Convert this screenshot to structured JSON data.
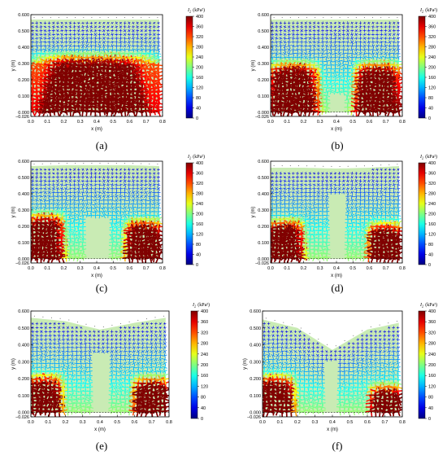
{
  "figure": {
    "panels": [
      {
        "label": "(a)",
        "surface": [
          [
            0,
            0.57
          ],
          [
            0.2,
            0.57
          ],
          [
            0.4,
            0.57
          ],
          [
            0.6,
            0.57
          ],
          [
            0.78,
            0.57
          ]
        ],
        "hot_zones": [
          [
            0.0,
            0.78,
            0.0,
            0.3
          ]
        ],
        "hole": null
      },
      {
        "label": "(b)",
        "surface": [
          [
            0,
            0.57
          ],
          [
            0.2,
            0.57
          ],
          [
            0.4,
            0.57
          ],
          [
            0.6,
            0.57
          ],
          [
            0.78,
            0.57
          ]
        ],
        "hot_zones": [
          [
            0.0,
            0.28,
            0.0,
            0.25
          ],
          [
            0.53,
            0.78,
            0.0,
            0.25
          ]
        ],
        "hole": [
          0.4,
          0.0,
          0.05,
          0.12
        ]
      },
      {
        "label": "(c)",
        "surface": [
          [
            0,
            0.57
          ],
          [
            0.2,
            0.575
          ],
          [
            0.4,
            0.575
          ],
          [
            0.6,
            0.575
          ],
          [
            0.78,
            0.57
          ]
        ],
        "hot_zones": [
          [
            0.0,
            0.18,
            0.0,
            0.22
          ],
          [
            0.6,
            0.78,
            0.0,
            0.18
          ]
        ],
        "hole": [
          0.4,
          0.0,
          0.08,
          0.25
        ]
      },
      {
        "label": "(d)",
        "surface": [
          [
            0,
            0.56
          ],
          [
            0.2,
            0.56
          ],
          [
            0.4,
            0.555
          ],
          [
            0.6,
            0.56
          ],
          [
            0.78,
            0.57
          ]
        ],
        "hot_zones": [
          [
            0.0,
            0.18,
            0.0,
            0.18
          ],
          [
            0.62,
            0.78,
            0.0,
            0.16
          ]
        ],
        "hole": [
          0.4,
          0.0,
          0.05,
          0.4
        ]
      },
      {
        "label": "(e)",
        "surface": [
          [
            0,
            0.56
          ],
          [
            0.2,
            0.54
          ],
          [
            0.4,
            0.49
          ],
          [
            0.6,
            0.53
          ],
          [
            0.78,
            0.56
          ]
        ],
        "hot_zones": [
          [
            0.0,
            0.16,
            0.0,
            0.16
          ],
          [
            0.62,
            0.78,
            0.0,
            0.15
          ]
        ],
        "hole": [
          0.4,
          0.0,
          0.05,
          0.35
        ]
      },
      {
        "label": "(f)",
        "surface": [
          [
            0,
            0.55
          ],
          [
            0.2,
            0.5
          ],
          [
            0.4,
            0.37
          ],
          [
            0.6,
            0.49
          ],
          [
            0.78,
            0.53
          ]
        ],
        "hot_zones": [
          [
            0.0,
            0.16,
            0.0,
            0.16
          ],
          [
            0.64,
            0.78,
            0.0,
            0.1
          ]
        ],
        "hole": [
          0.4,
          0.0,
          0.04,
          0.3
        ]
      }
    ]
  },
  "chart_data": {
    "type": "heatmap",
    "xlabel": "x (m)",
    "ylabel": "y (m)",
    "xticks": [
      "0.0",
      "0.1",
      "0.2",
      "0.3",
      "0.4",
      "0.5",
      "0.6",
      "0.7",
      "0.8"
    ],
    "yticks": [
      "0.600",
      "0.500",
      "0.400",
      "0.300",
      "0.200",
      "0.100",
      "0.000",
      "−0.026"
    ],
    "xlim": [
      0,
      0.8
    ],
    "ylim": [
      -0.026,
      0.6
    ],
    "colorbar": {
      "title": "I",
      "subscript": "2",
      "unit": "(kPa²)",
      "min": 0,
      "max": 400,
      "ticks": [
        "400",
        "360",
        "320",
        "280",
        "240",
        "200",
        "160",
        "120",
        "80",
        "40",
        "0"
      ]
    },
    "colors": {
      "background": "#c9ebb4",
      "low": "#0000ff",
      "high": "#ff0000"
    }
  }
}
